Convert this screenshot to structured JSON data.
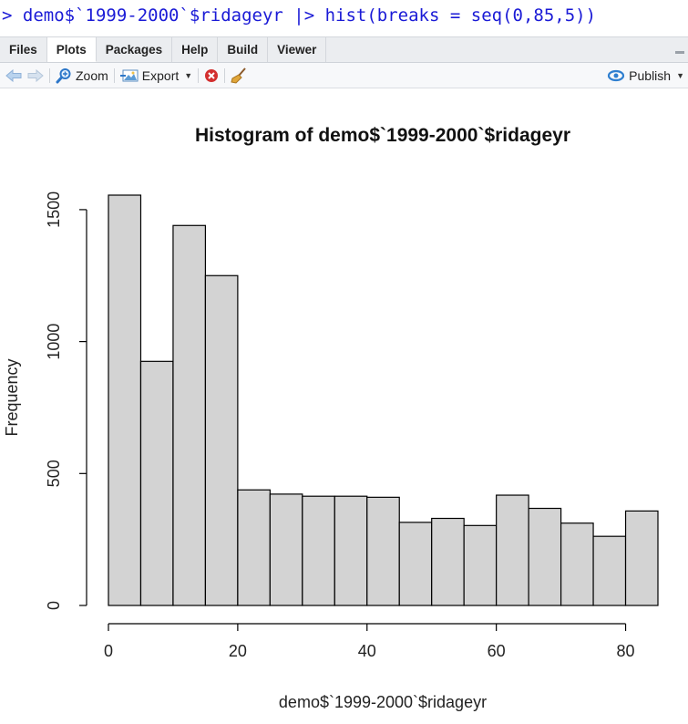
{
  "console": {
    "command": "> demo$`1999-2000`$ridageyr |> hist(breaks = seq(0,85,5))"
  },
  "tabs": [
    {
      "label": "Files",
      "active": false
    },
    {
      "label": "Plots",
      "active": true
    },
    {
      "label": "Packages",
      "active": false
    },
    {
      "label": "Help",
      "active": false
    },
    {
      "label": "Build",
      "active": false
    },
    {
      "label": "Viewer",
      "active": false
    }
  ],
  "toolbar": {
    "zoom_label": "Zoom",
    "export_label": "Export",
    "publish_label": "Publish"
  },
  "colors": {
    "console_text": "#1a1ad6",
    "bar_fill": "#d3d3d3",
    "bar_stroke": "#000000",
    "publish_icon": "#2f7fd0"
  },
  "chart_data": {
    "type": "bar",
    "title": "Histogram of demo$`1999-2000`$ridageyr",
    "xlabel": "demo$`1999-2000`$ridageyr",
    "ylabel": "Frequency",
    "bin_edges": [
      0,
      5,
      10,
      15,
      20,
      25,
      30,
      35,
      40,
      45,
      50,
      55,
      60,
      65,
      70,
      75,
      80,
      85
    ],
    "values": [
      1555,
      925,
      1440,
      1250,
      438,
      422,
      414,
      414,
      410,
      315,
      330,
      303,
      418,
      368,
      312,
      262,
      358
    ],
    "xlim": [
      0,
      85
    ],
    "ylim": [
      0,
      1555
    ],
    "x_ticks": [
      0,
      20,
      40,
      60,
      80
    ],
    "y_ticks": [
      0,
      500,
      1000,
      1500
    ],
    "grid": false
  }
}
